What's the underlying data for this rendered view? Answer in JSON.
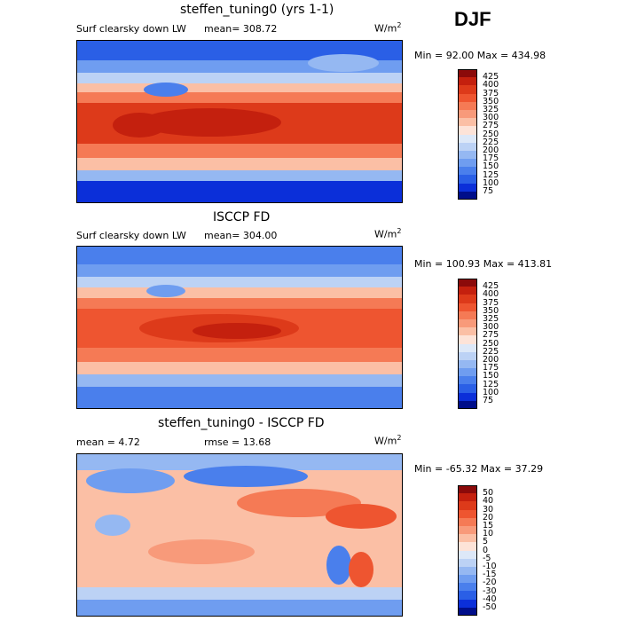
{
  "season": "DJF",
  "units_base": "W/m",
  "units_exp": "2",
  "panels": [
    {
      "title": "steffen_tuning0 (yrs 1-1)",
      "variable": "Surf clearsky down LW",
      "mean_text": "mean= 308.72",
      "minmax": "Min =  92.00 Max = 434.98",
      "levels": [
        "425",
        "400",
        "375",
        "350",
        "325",
        "300",
        "275",
        "250",
        "225",
        "200",
        "175",
        "150",
        "125",
        "100",
        "75"
      ],
      "colors": [
        "#8b0a0a",
        "#c4200e",
        "#dd3a1a",
        "#ee5530",
        "#f57a55",
        "#f89a7a",
        "#fbbfa5",
        "#fde3d8",
        "#dde8f8",
        "#bcd2f5",
        "#95b8f2",
        "#6f9df0",
        "#4a7fec",
        "#2a5fe6",
        "#0b2fd9",
        "#000e8a"
      ]
    },
    {
      "title": "ISCCP FD",
      "variable": "Surf clearsky down LW",
      "mean_text": "mean= 304.00",
      "minmax": "Min = 100.93 Max = 413.81",
      "levels": [
        "425",
        "400",
        "375",
        "350",
        "325",
        "300",
        "275",
        "250",
        "225",
        "200",
        "175",
        "150",
        "125",
        "100",
        "75"
      ],
      "colors": [
        "#8b0a0a",
        "#c4200e",
        "#dd3a1a",
        "#ee5530",
        "#f57a55",
        "#f89a7a",
        "#fbbfa5",
        "#fde3d8",
        "#dde8f8",
        "#bcd2f5",
        "#95b8f2",
        "#6f9df0",
        "#4a7fec",
        "#2a5fe6",
        "#0b2fd9",
        "#000e8a"
      ]
    },
    {
      "title": "steffen_tuning0 - ISCCP FD",
      "mean_text": "mean =   4.72",
      "rmse_text": "rmse =  13.68",
      "minmax": "Min = -65.32 Max =  37.29",
      "levels": [
        "50",
        "40",
        "30",
        "20",
        "15",
        "10",
        "5",
        "0",
        "-5",
        "-10",
        "-15",
        "-20",
        "-30",
        "-40",
        "-50"
      ],
      "colors": [
        "#8b0a0a",
        "#c4200e",
        "#dd3a1a",
        "#ee5530",
        "#f57a55",
        "#f89a7a",
        "#fbbfa5",
        "#fde3d8",
        "#dde8f8",
        "#bcd2f5",
        "#95b8f2",
        "#6f9df0",
        "#4a7fec",
        "#2a5fe6",
        "#0b2fd9",
        "#000e8a"
      ]
    }
  ]
}
